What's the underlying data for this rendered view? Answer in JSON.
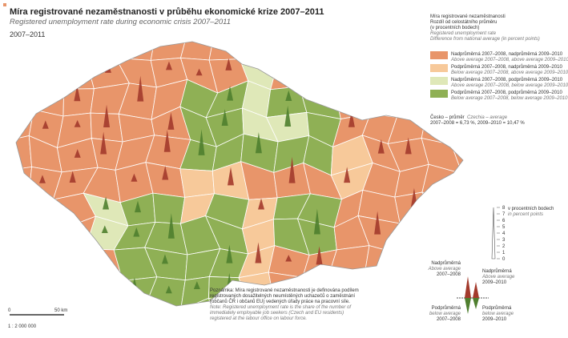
{
  "header": {
    "title": "Míra registrované nezaměstnanosti v průběhu ekonomické krize 2007–2011",
    "subtitle": "Registered unemployment rate during economic crisis 2007–2011",
    "period": "2007–2011"
  },
  "legend": {
    "title_lines": [
      "Míra registrované nezaměstnanosti",
      "Rozdíl od celostátního průměru",
      "(v procentních bodech)"
    ],
    "title_en_lines": [
      "Registered unemployment rate",
      "Difference from national average (in percent points)"
    ],
    "items": [
      {
        "label": "Nadprůměrná 2007–2008, nadprůměrná 2009–2010",
        "label_en": "Above average 2007–2008, above average 2009–2010",
        "color": "#e8956a"
      },
      {
        "label": "Podprůměrná 2007–2008, nadprůměrná 2009–2010",
        "label_en": "Below average 2007–2008, above average 2009–2010",
        "color": "#f7c99a"
      },
      {
        "label": "Nadprůměrná 2007–2008, podprůměrná 2009–2010",
        "label_en": "Above average 2007–2008, below average 2009–2010",
        "color": "#dfe8b8"
      },
      {
        "label": "Podprůměrná 2007–2008, podprůměrná 2009–2010",
        "label_en": "Below average 2007–2008, below average 2009–2010",
        "color": "#8fb055"
      }
    ],
    "average_label": "Česko – průměr",
    "average_label_en": "Czechia – average",
    "average_values": "2007–2008 = 6,73 %, 2009–2010 = 10,47 %"
  },
  "spike_scale": {
    "title": "v procentních bodech",
    "title_en": "in percent points",
    "ticks": [
      0,
      1,
      2,
      3,
      4,
      5,
      6,
      7,
      8
    ]
  },
  "spike_legend": {
    "top_left": {
      "label": "Nadprůměrná",
      "label_en": "Above average",
      "period": "2007–2008"
    },
    "top_right": {
      "label": "Nadprůměrná",
      "label_en": "Above average",
      "period": "2009–2010"
    },
    "bottom_left": {
      "label": "Podprůměrná",
      "label_en": "below average",
      "period": "2007–2008"
    },
    "bottom_right": {
      "label": "Podprůměrná",
      "label_en": "below average",
      "period": "2009–2010"
    }
  },
  "note": {
    "text": "Poznámka: Míra registrované nezaměstnanosti je definována podílem registrovaných dosažitelných neumístěných uchazečů o zaměstnání (občanů ČR i občanů EU) vedených úřady práce na pracovní síle.",
    "text_en": "Note: Registered unemployment rate is the share of the number of immediately employable job seekers (Czech and EU residents) registered at the labour office on labour force."
  },
  "scale_bar": {
    "start": "0",
    "end": "50 km",
    "ratio": "1 : 2 000 000"
  }
}
